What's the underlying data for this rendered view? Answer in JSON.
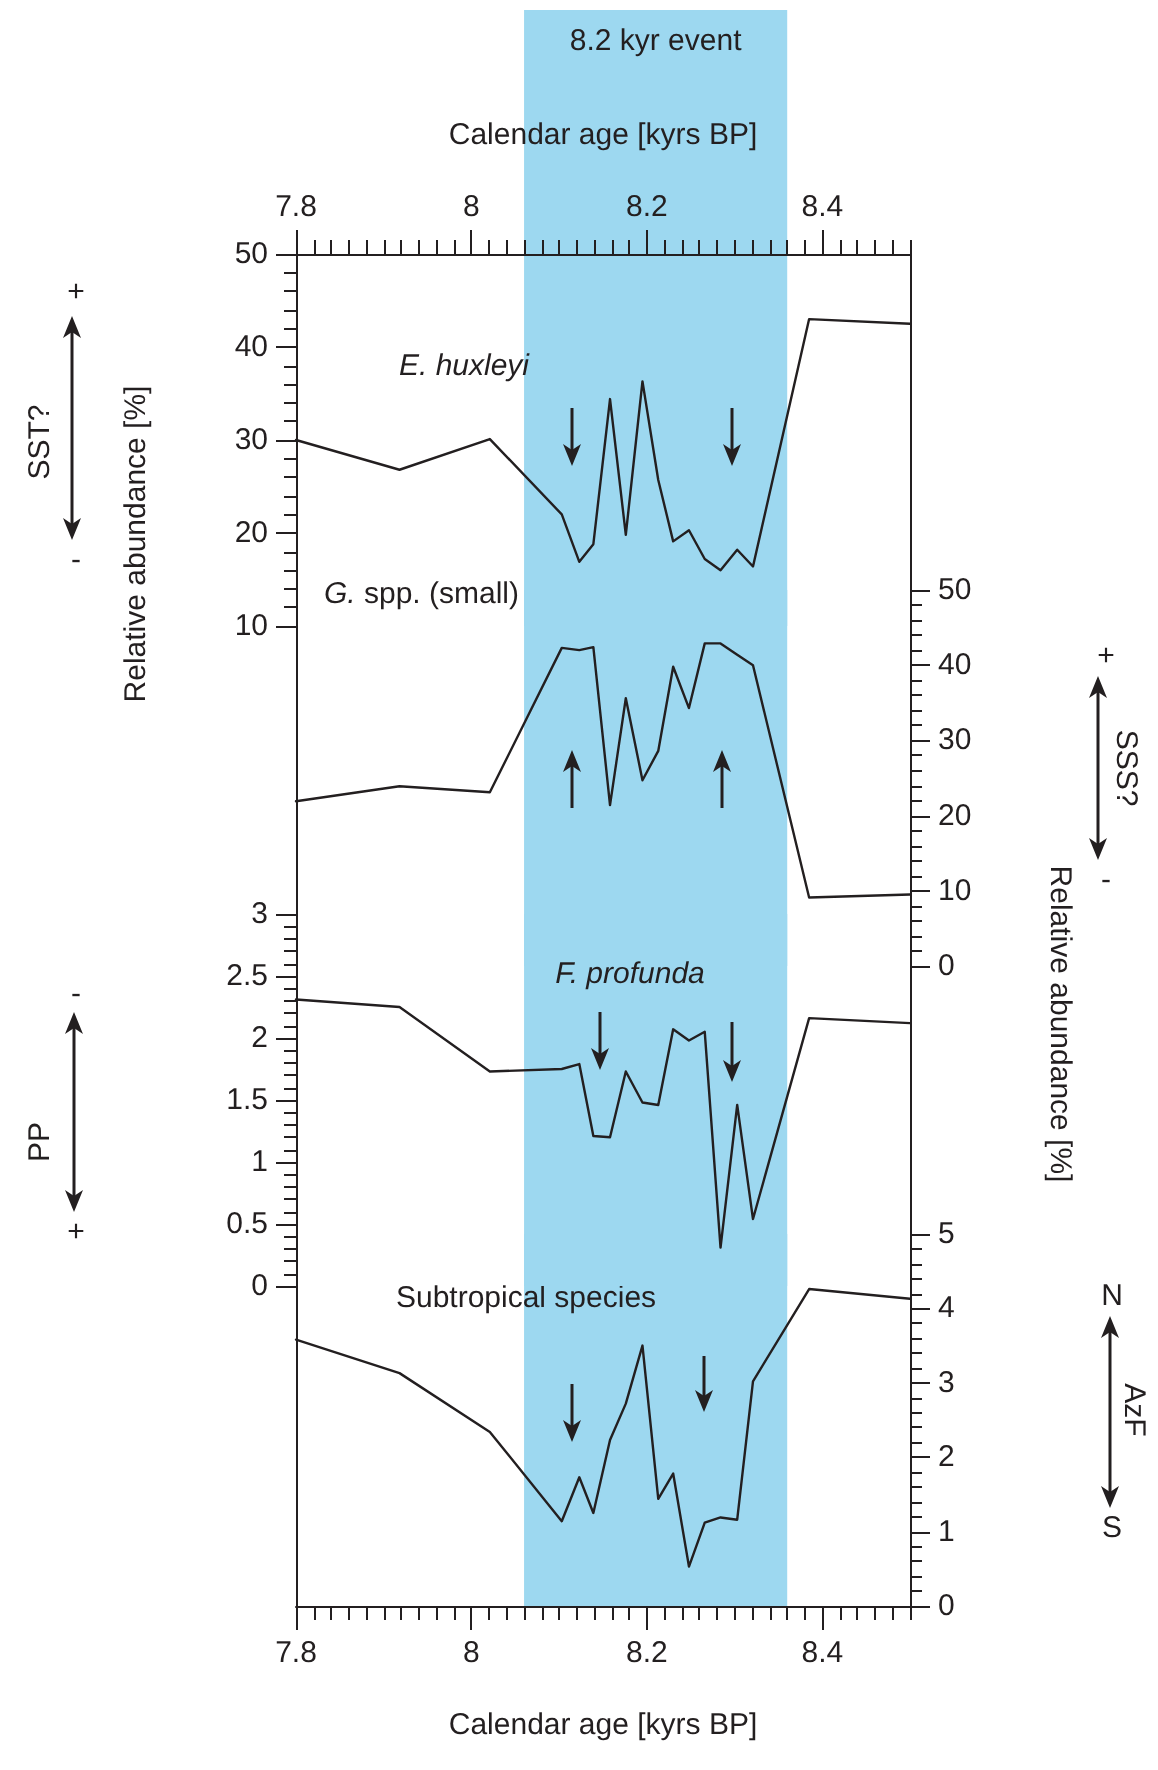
{
  "chart_data": [
    {
      "type": "line",
      "xlabel": "Calendar age [kyrs BP]",
      "ylabel": "Relative abundance [%]",
      "xlim": [
        7.8,
        8.5
      ],
      "xticks": [
        7.8,
        8,
        8.2,
        8.4
      ],
      "ylim": [
        10,
        50
      ],
      "yticks": [
        10,
        20,
        30,
        40,
        50
      ],
      "x": [
        7.8,
        7.918,
        8.021,
        8.103,
        8.123,
        8.139,
        8.158,
        8.176,
        8.195,
        8.213,
        8.23,
        8.248,
        8.266,
        8.284,
        8.303,
        8.321,
        8.385,
        8.5
      ],
      "series": [
        {
          "name": "E. huxleyi",
          "color": "#231f20",
          "values": [
            30.0,
            26.8,
            30.1,
            22.0,
            16.9,
            18.8,
            34.4,
            19.8,
            36.3,
            25.7,
            19.1,
            20.3,
            17.2,
            16.0,
            18.2,
            16.4,
            43.0,
            42.5
          ]
        }
      ],
      "bands": [
        {
          "axis": "x",
          "from": 8.06,
          "to": 8.36,
          "label": "8.2 kyr event",
          "color": "#9dd8f0"
        }
      ],
      "annotations": [
        "SST?",
        "+",
        "-"
      ],
      "legend": false,
      "grid": false,
      "marker": "none",
      "line_style": "solid"
    },
    {
      "type": "line",
      "ylabel": "Relative abundance [%]",
      "xlim": [
        7.8,
        8.5
      ],
      "ylim": [
        0,
        50
      ],
      "yticks": [
        0,
        10,
        20,
        30,
        40,
        50
      ],
      "tick_labels": "y",
      "x": [
        7.8,
        7.918,
        8.021,
        8.103,
        8.123,
        8.139,
        8.158,
        8.176,
        8.195,
        8.213,
        8.23,
        8.248,
        8.266,
        8.284,
        8.303,
        8.321,
        8.385,
        8.5
      ],
      "series": [
        {
          "name": "G. spp. (small)",
          "color": "#231f20",
          "values": [
            21.9,
            23.9,
            23.1,
            42.3,
            42.0,
            42.4,
            21.4,
            35.6,
            24.7,
            28.6,
            39.8,
            34.3,
            42.9,
            42.9,
            41.4,
            40.0,
            9.1,
            9.5
          ]
        }
      ],
      "bands": [
        {
          "axis": "x",
          "from": 8.06,
          "to": 8.36,
          "color": "#9dd8f0"
        }
      ],
      "annotations": [
        "SSS?",
        "+",
        "-"
      ],
      "legend": false,
      "grid": false,
      "marker": "none",
      "line_style": "solid"
    },
    {
      "type": "line",
      "xlim": [
        7.8,
        8.5
      ],
      "ylim": [
        0,
        3
      ],
      "yticks": [
        0,
        0.5,
        1,
        1.5,
        2,
        2.5,
        3
      ],
      "tick_labels": "y",
      "x": [
        7.8,
        7.918,
        8.021,
        8.103,
        8.123,
        8.139,
        8.158,
        8.176,
        8.195,
        8.213,
        8.23,
        8.248,
        8.266,
        8.284,
        8.303,
        8.321,
        8.385,
        8.5
      ],
      "series": [
        {
          "name": "F. profunda",
          "color": "#231f20",
          "values": [
            2.31,
            2.25,
            1.73,
            1.75,
            1.79,
            1.21,
            1.2,
            1.73,
            1.48,
            1.46,
            2.07,
            1.98,
            2.05,
            0.31,
            1.46,
            0.54,
            2.16,
            2.12
          ]
        }
      ],
      "bands": [
        {
          "axis": "x",
          "from": 8.06,
          "to": 8.36,
          "color": "#9dd8f0"
        }
      ],
      "annotations": [
        "PP",
        "-",
        "+"
      ],
      "legend": false,
      "grid": false,
      "marker": "none",
      "line_style": "solid"
    },
    {
      "type": "line",
      "xlabel": "Calendar age [kyrs BP]",
      "xlim": [
        7.8,
        8.5
      ],
      "xticks": [
        7.8,
        8,
        8.2,
        8.4
      ],
      "ylim": [
        0,
        5
      ],
      "yticks": [
        0,
        1,
        2,
        3,
        4,
        5
      ],
      "x": [
        7.8,
        7.918,
        8.021,
        8.103,
        8.123,
        8.139,
        8.158,
        8.176,
        8.195,
        8.213,
        8.23,
        8.248,
        8.266,
        8.284,
        8.303,
        8.321,
        8.385,
        8.5
      ],
      "series": [
        {
          "name": "Subtropical species",
          "color": "#231f20",
          "values": [
            3.58,
            3.13,
            2.34,
            1.14,
            1.73,
            1.25,
            2.23,
            2.72,
            3.5,
            1.44,
            1.78,
            0.53,
            1.12,
            1.19,
            1.16,
            3.02,
            4.26,
            4.13
          ]
        }
      ],
      "bands": [
        {
          "axis": "x",
          "from": 8.06,
          "to": 8.36,
          "color": "#9dd8f0"
        }
      ],
      "annotations": [
        "AzF",
        "N",
        "S"
      ],
      "legend": false,
      "grid": false,
      "marker": "none",
      "line_style": "solid"
    }
  ]
}
